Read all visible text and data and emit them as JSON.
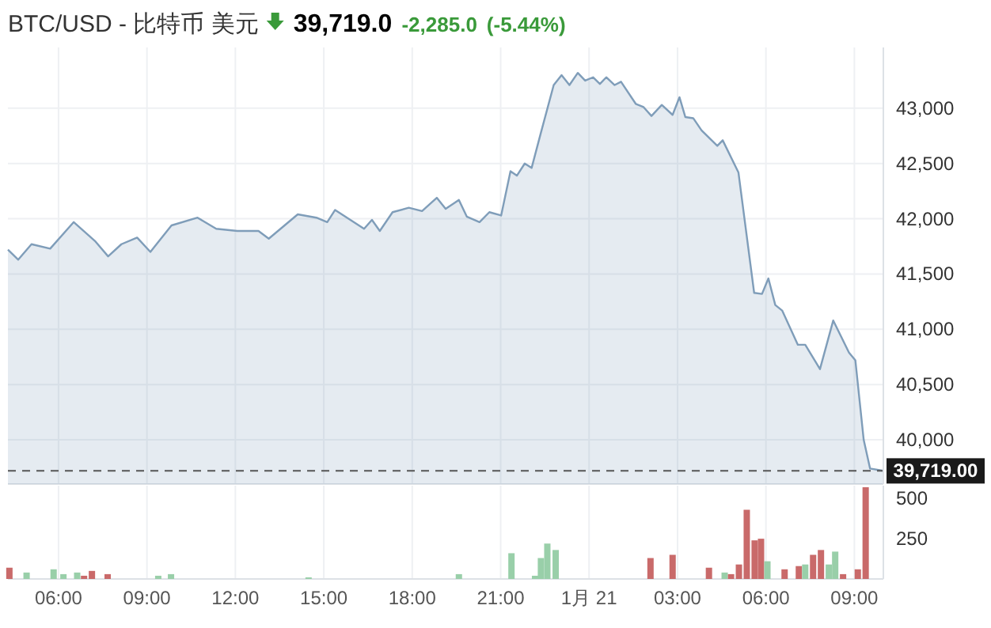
{
  "chart_data": [
    {
      "type": "area",
      "title": "BTC/USD - 比特币 美元",
      "annotations": [
        "39,719.0",
        "-2,285.0",
        "(-5.44%)"
      ],
      "xlim": [
        "--01-20T04:17",
        "--01-21T09:59"
      ],
      "xticks": [
        {
          "value": "--01-20T06:00",
          "label": null
        },
        {
          "value": "--01-20T09:00",
          "label": null
        },
        {
          "value": "--01-20T12:00",
          "label": null
        },
        {
          "value": "--01-20T15:00",
          "label": null
        },
        {
          "value": "--01-20T18:00",
          "label": null
        },
        {
          "value": "--01-20T21:00",
          "label": null
        },
        {
          "value": "--01-21T00:00",
          "label": null
        },
        {
          "value": "--01-21T03:00",
          "label": null
        },
        {
          "value": "--01-21T06:00",
          "label": null
        },
        {
          "value": "--01-21T09:00",
          "label": null
        }
      ],
      "ylim": [
        39600,
        43550
      ],
      "yticks": [
        {
          "value": 40000,
          "label": "40,000"
        },
        {
          "value": 40500,
          "label": "40,500"
        },
        {
          "value": 41000,
          "label": "41,000"
        },
        {
          "value": 41500,
          "label": "41,500"
        },
        {
          "value": 42000,
          "label": "42,000"
        },
        {
          "value": 42500,
          "label": "42,500"
        },
        {
          "value": 43000,
          "label": "43,000"
        }
      ],
      "tick_labels": "y",
      "grid": true,
      "ref_lines": [
        {
          "axis": "y",
          "value": 39719,
          "label": "39,719.00",
          "color": "#555555",
          "line_style": "dashed"
        }
      ],
      "series": [
        {
          "color": "#7f9db9",
          "x": [
            "--01-20T04:17",
            "--01-20T04:38",
            "--01-20T05:05",
            "--01-20T05:43",
            "--01-20T06:31",
            "--01-20T07:14",
            "--01-20T07:41",
            "--01-20T08:08",
            "--01-20T08:40",
            "--01-20T09:07",
            "--01-20T09:23",
            "--01-20T09:50",
            "--01-20T10:43",
            "--01-20T11:21",
            "--01-20T12:04",
            "--01-20T12:47",
            "--01-20T13:08",
            "--01-20T14:07",
            "--01-20T14:45",
            "--01-20T15:07",
            "--01-20T15:23",
            "--01-20T16:22",
            "--01-20T16:38",
            "--01-20T16:54",
            "--01-20T17:20",
            "--01-20T17:53",
            "--01-20T18:20",
            "--01-20T18:50",
            "--01-20T19:08",
            "--01-20T19:35",
            "--01-20T19:51",
            "--01-20T20:17",
            "--01-20T20:37",
            "--01-20T21:01",
            "--01-20T21:20",
            "--01-20T21:33",
            "--01-20T21:49",
            "--01-20T22:03",
            "--01-20T22:22",
            "--01-20T22:48",
            "--01-20T23:04",
            "--01-20T23:20",
            "--01-20T23:37",
            "--01-20T23:52",
            "--01-21T00:08",
            "--01-21T00:22",
            "--01-21T00:35",
            "--01-21T00:52",
            "--01-21T01:05",
            "--01-21T01:35",
            "--01-21T01:51",
            "--01-21T02:07",
            "--01-21T02:28",
            "--01-21T02:50",
            "--01-21T03:04",
            "--01-21T03:16",
            "--01-21T03:32",
            "--01-21T03:49",
            "--01-21T04:21",
            "--01-21T04:32",
            "--01-21T05:04",
            "--01-21T05:36",
            "--01-21T05:52",
            "--01-21T06:05",
            "--01-21T06:19",
            "--01-21T06:33",
            "--01-21T07:05",
            "--01-21T07:20",
            "--01-21T07:50",
            "--01-21T08:17",
            "--01-21T08:49",
            "--01-21T09:02",
            "--01-21T09:19",
            "--01-21T09:32",
            "--01-21T09:59"
          ],
          "values": [
            41720,
            41630,
            41770,
            41730,
            41970,
            41800,
            41660,
            41770,
            41830,
            41700,
            41790,
            41940,
            42010,
            41910,
            41890,
            41890,
            41820,
            42040,
            42010,
            41970,
            42080,
            41910,
            41990,
            41890,
            42060,
            42100,
            42070,
            42190,
            42090,
            42170,
            42020,
            41970,
            42060,
            42030,
            42430,
            42390,
            42500,
            42460,
            42780,
            43210,
            43300,
            43210,
            43320,
            43250,
            43280,
            43220,
            43280,
            43210,
            43240,
            43040,
            43010,
            42930,
            43030,
            42940,
            43100,
            42920,
            42910,
            42800,
            42660,
            42710,
            42420,
            41330,
            41320,
            41460,
            41220,
            41170,
            40860,
            40860,
            40640,
            41080,
            40790,
            40720,
            40000,
            39740,
            39720
          ]
        }
      ]
    },
    {
      "type": "bar",
      "xlim": [
        "--01-20T04:17",
        "--01-21T09:59"
      ],
      "xticks": [
        {
          "value": "--01-20T06:00",
          "label": "06:00"
        },
        {
          "value": "--01-20T09:00",
          "label": "09:00"
        },
        {
          "value": "--01-20T12:00",
          "label": "12:00"
        },
        {
          "value": "--01-20T15:00",
          "label": "15:00"
        },
        {
          "value": "--01-20T18:00",
          "label": "18:00"
        },
        {
          "value": "--01-20T21:00",
          "label": "21:00"
        },
        {
          "value": "--01-21T00:00",
          "label": "1月 21"
        },
        {
          "value": "--01-21T03:00",
          "label": "03:00"
        },
        {
          "value": "--01-21T06:00",
          "label": "06:00"
        },
        {
          "value": "--01-21T09:00",
          "label": "09:00"
        }
      ],
      "ylim": [
        0,
        580
      ],
      "yticks": [
        250,
        500
      ],
      "grid": "x",
      "x": [
        "--01-20T04:20",
        "--01-20T04:55",
        "--01-20T05:50",
        "--01-20T06:10",
        "--01-20T06:38",
        "--01-20T06:52",
        "--01-20T07:08",
        "--01-20T07:40",
        "--01-20T09:23",
        "--01-20T09:49",
        "--01-20T14:29",
        "--01-20T19:35",
        "--01-20T21:22",
        "--01-20T22:10",
        "--01-20T22:22",
        "--01-20T22:35",
        "--01-20T22:52",
        "--01-21T02:05",
        "--01-21T02:50",
        "--01-21T04:04",
        "--01-21T04:36",
        "--01-21T04:49",
        "--01-21T05:05",
        "--01-21T05:21",
        "--01-21T05:37",
        "--01-21T05:50",
        "--01-21T06:03",
        "--01-21T06:38",
        "--01-21T07:07",
        "--01-21T07:20",
        "--01-21T07:36",
        "--01-21T07:52",
        "--01-21T08:08",
        "--01-21T08:21",
        "--01-21T08:37",
        "--01-21T09:07",
        "--01-21T09:23"
      ],
      "values": [
        70,
        40,
        60,
        30,
        40,
        20,
        50,
        30,
        20,
        30,
        10,
        30,
        160,
        20,
        130,
        220,
        180,
        130,
        150,
        70,
        40,
        30,
        90,
        430,
        240,
        250,
        110,
        60,
        80,
        90,
        150,
        180,
        90,
        170,
        30,
        60,
        570
      ],
      "colors": [
        "#c96a6a",
        "#99cfa9",
        "#99cfa9",
        "#99cfa9",
        "#99cfa9",
        "#c96a6a",
        "#c96a6a",
        "#c96a6a",
        "#99cfa9",
        "#99cfa9",
        "#99cfa9",
        "#99cfa9",
        "#99cfa9",
        "#99cfa9",
        "#99cfa9",
        "#99cfa9",
        "#99cfa9",
        "#c96a6a",
        "#c96a6a",
        "#c96a6a",
        "#99cfa9",
        "#c96a6a",
        "#c96a6a",
        "#c96a6a",
        "#c96a6a",
        "#c96a6a",
        "#99cfa9",
        "#c96a6a",
        "#c96a6a",
        "#99cfa9",
        "#c96a6a",
        "#c96a6a",
        "#99cfa9",
        "#99cfa9",
        "#c96a6a",
        "#c96a6a",
        "#c96a6a"
      ]
    }
  ]
}
